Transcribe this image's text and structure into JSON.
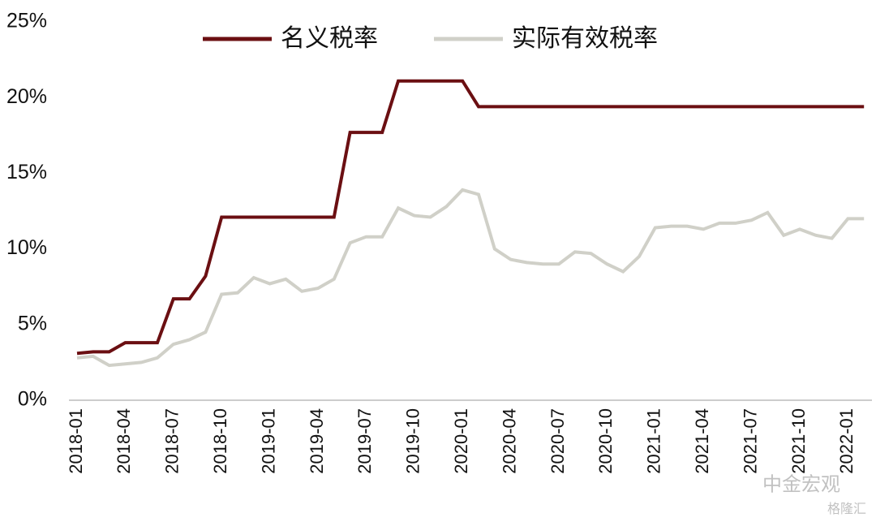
{
  "chart_data": {
    "type": "line",
    "categories": [
      "2018-01",
      null,
      null,
      "2018-04",
      null,
      null,
      "2018-07",
      null,
      null,
      "2018-10",
      null,
      null,
      "2019-01",
      null,
      null,
      "2019-04",
      null,
      null,
      "2019-07",
      null,
      null,
      "2019-10",
      null,
      null,
      "2020-01",
      null,
      null,
      "2020-04",
      null,
      null,
      "2020-07",
      null,
      null,
      "2020-10",
      null,
      null,
      "2021-01",
      null,
      null,
      "2021-04",
      null,
      null,
      "2021-07",
      null,
      null,
      "2021-10",
      null,
      null,
      "2022-01",
      null
    ],
    "series": [
      {
        "name": "名义税率",
        "color": "#6b0f12",
        "values": [
          3.1,
          3.2,
          3.2,
          3.8,
          3.8,
          3.8,
          6.7,
          6.7,
          8.2,
          12.1,
          12.1,
          12.1,
          12.1,
          12.1,
          12.1,
          12.1,
          12.1,
          17.7,
          17.7,
          17.7,
          21.1,
          21.1,
          21.1,
          21.1,
          21.1,
          19.4,
          19.4,
          19.4,
          19.4,
          19.4,
          19.4,
          19.4,
          19.4,
          19.4,
          19.4,
          19.4,
          19.4,
          19.4,
          19.4,
          19.4,
          19.4,
          19.4,
          19.4,
          19.4,
          19.4,
          19.4,
          19.4,
          19.4,
          19.4,
          19.4
        ]
      },
      {
        "name": "实际有效税率",
        "color": "#d0d0c8",
        "values": [
          2.8,
          2.9,
          2.3,
          2.4,
          2.5,
          2.8,
          3.7,
          4.0,
          4.5,
          7.0,
          7.1,
          8.1,
          7.7,
          8.0,
          7.2,
          7.4,
          8.0,
          10.4,
          10.8,
          10.8,
          12.7,
          12.2,
          12.1,
          12.8,
          13.9,
          13.6,
          10.0,
          9.3,
          9.1,
          9.0,
          9.0,
          9.8,
          9.7,
          9.0,
          8.5,
          9.5,
          11.4,
          11.5,
          11.5,
          11.3,
          11.7,
          11.7,
          11.9,
          12.4,
          10.9,
          11.3,
          10.9,
          10.7,
          12.0,
          12.0
        ]
      }
    ],
    "ylim": [
      0,
      25
    ],
    "yticks": [
      {
        "value": 0,
        "label": "0%"
      },
      {
        "value": 5,
        "label": "5%"
      },
      {
        "value": 10,
        "label": "10%"
      },
      {
        "value": 15,
        "label": "15%"
      },
      {
        "value": 20,
        "label": "20%"
      },
      {
        "value": 25,
        "label": "25%"
      }
    ],
    "watermark": "中金宏观",
    "watermark2": "格隆汇"
  }
}
